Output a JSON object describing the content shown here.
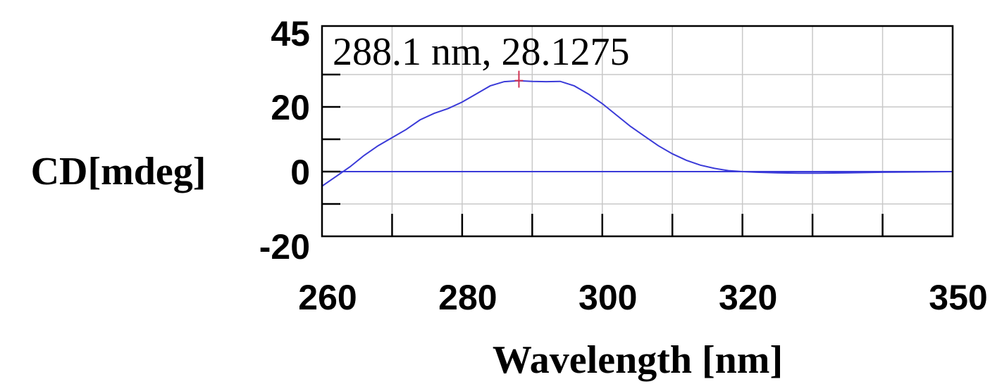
{
  "chart_data": {
    "type": "line",
    "title": "",
    "xlabel": "Wavelength [nm]",
    "ylabel": "CD[mdeg]",
    "xlim": [
      260,
      350
    ],
    "ylim": [
      -20,
      45
    ],
    "x_ticks": [
      260,
      280,
      300,
      320,
      350
    ],
    "x_tick_labels": [
      "260",
      "280",
      "300",
      "320",
      "350"
    ],
    "x_minor_ticks": [
      270,
      290,
      310,
      330,
      340
    ],
    "y_ticks": [
      45,
      20,
      0,
      -20
    ],
    "y_tick_labels": [
      "45",
      "20",
      "0",
      "-20"
    ],
    "x_grid": [
      270,
      280,
      290,
      300,
      310,
      320,
      330,
      340
    ],
    "y_grid": [
      30,
      20,
      10,
      0,
      -10
    ],
    "grid": true,
    "annotation": {
      "text": "288.1 nm, 28.1275",
      "x": 288.1,
      "y": 28.1275
    },
    "series": [
      {
        "values": [
          [
            260,
            -4.5
          ],
          [
            262,
            -1.5
          ],
          [
            264,
            1.5
          ],
          [
            266,
            5
          ],
          [
            268,
            8
          ],
          [
            270,
            10.5
          ],
          [
            272,
            13
          ],
          [
            274,
            16
          ],
          [
            276,
            18
          ],
          [
            278,
            19.5
          ],
          [
            280,
            21.5
          ],
          [
            282,
            24
          ],
          [
            284,
            26.5
          ],
          [
            286,
            27.8
          ],
          [
            288,
            28.1
          ],
          [
            290,
            27.9
          ],
          [
            292,
            27.8
          ],
          [
            294,
            27.9
          ],
          [
            296,
            26.5
          ],
          [
            298,
            24
          ],
          [
            300,
            21
          ],
          [
            302,
            17.5
          ],
          [
            304,
            14
          ],
          [
            306,
            11
          ],
          [
            308,
            8
          ],
          [
            310,
            5.5
          ],
          [
            312,
            3.5
          ],
          [
            314,
            2
          ],
          [
            316,
            1
          ],
          [
            318,
            0.3
          ],
          [
            320,
            0
          ],
          [
            322,
            -0.2
          ],
          [
            325,
            -0.4
          ],
          [
            328,
            -0.5
          ],
          [
            331,
            -0.5
          ],
          [
            335,
            -0.4
          ],
          [
            340,
            -0.2
          ],
          [
            345,
            -0.1
          ],
          [
            350,
            0
          ]
        ]
      },
      {
        "values": [
          [
            260,
            0
          ],
          [
            350,
            0
          ]
        ]
      }
    ],
    "colors": {
      "series": "#3a3ad8",
      "marker": "#d03050",
      "grid": "#c8c8c8",
      "frame": "#000000"
    }
  }
}
